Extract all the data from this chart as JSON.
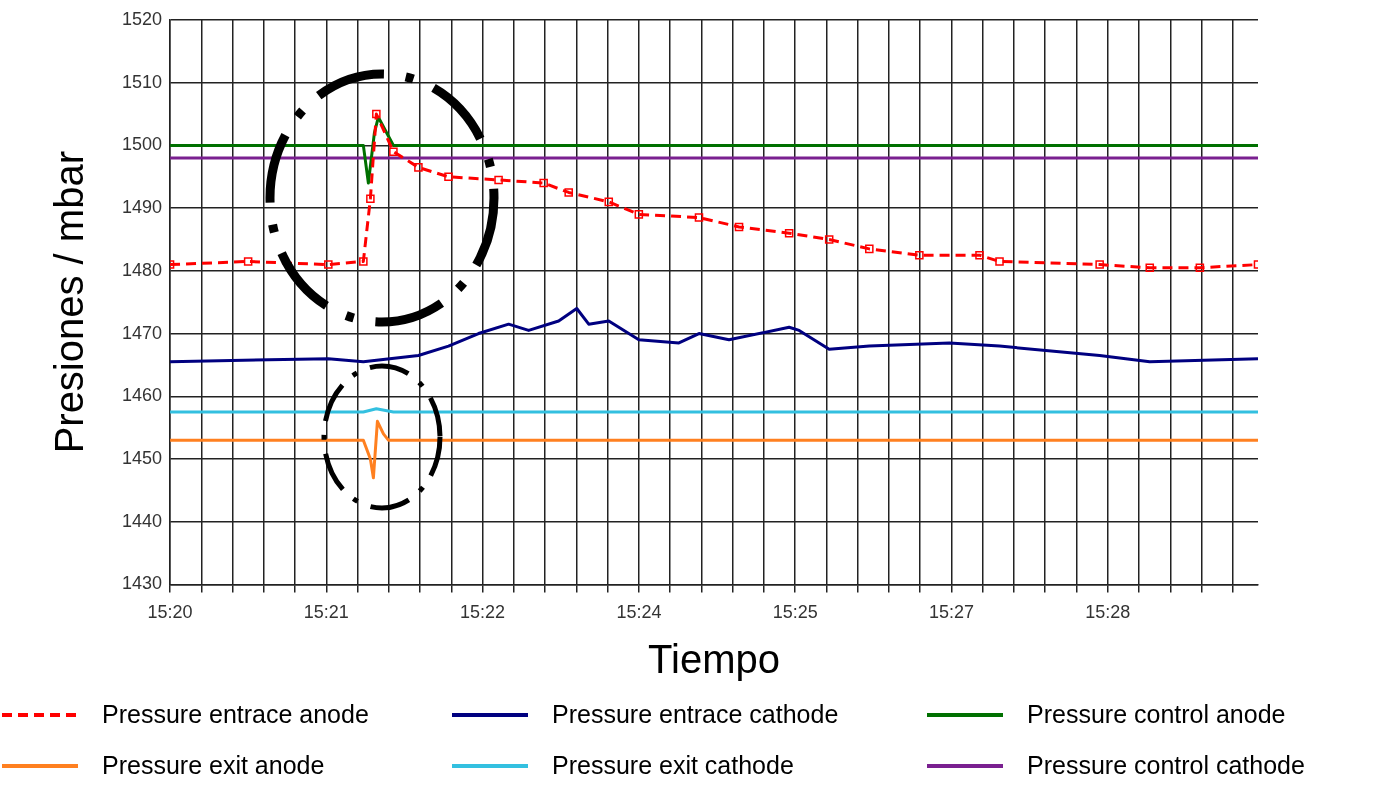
{
  "chart_data": {
    "type": "line",
    "xlabel": "Tiempo",
    "ylabel": "Presiones / mbar",
    "legend": "bottom",
    "grid": true,
    "xlim": [
      15.32667,
      15.4891
    ],
    "ylim": [
      1430,
      1520
    ],
    "yticks": [
      1430,
      1440,
      1450,
      1460,
      1470,
      1480,
      1490,
      1500,
      1510,
      1520
    ],
    "xticks": [
      {
        "value": 15.32667,
        "label": "15:20"
      },
      {
        "value": 15.33133,
        "label": null
      },
      {
        "value": 15.336,
        "label": null
      },
      {
        "value": 15.34067,
        "label": null
      },
      {
        "value": 15.34533,
        "label": null
      },
      {
        "value": 15.35,
        "label": "15:21"
      },
      {
        "value": 15.35467,
        "label": null
      },
      {
        "value": 15.35933,
        "label": null
      },
      {
        "value": 15.364,
        "label": null
      },
      {
        "value": 15.36867,
        "label": null
      },
      {
        "value": 15.37333,
        "label": "15:22"
      },
      {
        "value": 15.378,
        "label": null
      },
      {
        "value": 15.38267,
        "label": null
      },
      {
        "value": 15.38733,
        "label": null
      },
      {
        "value": 15.392,
        "label": null
      },
      {
        "value": 15.39667,
        "label": "15:24"
      },
      {
        "value": 15.40133,
        "label": null
      },
      {
        "value": 15.406,
        "label": null
      },
      {
        "value": 15.41067,
        "label": null
      },
      {
        "value": 15.41533,
        "label": null
      },
      {
        "value": 15.42,
        "label": "15:25"
      },
      {
        "value": 15.42467,
        "label": null
      },
      {
        "value": 15.42933,
        "label": null
      },
      {
        "value": 15.434,
        "label": null
      },
      {
        "value": 15.43867,
        "label": null
      },
      {
        "value": 15.44333,
        "label": "15:27"
      },
      {
        "value": 15.448,
        "label": null
      },
      {
        "value": 15.45267,
        "label": null
      },
      {
        "value": 15.45733,
        "label": null
      },
      {
        "value": 15.462,
        "label": null
      },
      {
        "value": 15.46667,
        "label": "15:28"
      },
      {
        "value": 15.47133,
        "label": null
      },
      {
        "value": 15.476,
        "label": null
      },
      {
        "value": 15.48067,
        "label": null
      },
      {
        "value": 15.48533,
        "label": null
      }
    ],
    "series": [
      {
        "name": "Pressure entrace anode",
        "color": "#ff0000",
        "line_style": "dashed",
        "marker": "square",
        "x": [
          15.32667,
          15.33833,
          15.3503,
          15.35553,
          15.35658,
          15.35747,
          15.36002,
          15.36375,
          15.36824,
          15.37572,
          15.38245,
          15.38619,
          15.39217,
          15.39666,
          15.40564,
          15.41162,
          15.4191,
          15.42508,
          15.43107,
          15.43854,
          15.44752,
          15.45051,
          15.46546,
          15.47294,
          15.48042,
          15.4891
        ],
        "values": [
          1481,
          1481.5,
          1481,
          1481.5,
          1491.5,
          1505,
          1499,
          1496.5,
          1495,
          1494.5,
          1494,
          1492.5,
          1491,
          1489,
          1488.5,
          1487,
          1486,
          1485,
          1483.5,
          1482.5,
          1482.5,
          1481.5,
          1481,
          1480.5,
          1480.5,
          1481
        ]
      },
      {
        "name": "Pressure entrace cathode",
        "color": "#000080",
        "line_style": "solid",
        "marker": "none",
        "x": [
          15.32667,
          15.3503,
          15.35553,
          15.36375,
          15.36824,
          15.37273,
          15.37722,
          15.38021,
          15.38469,
          15.38739,
          15.38918,
          15.39217,
          15.39666,
          15.40264,
          15.40564,
          15.41012,
          15.4191,
          15.42059,
          15.42508,
          15.43107,
          15.44303,
          15.45051,
          15.46546,
          15.47294,
          15.4891
        ],
        "values": [
          1465.5,
          1466,
          1465.5,
          1466.5,
          1468,
          1470,
          1471.5,
          1470.5,
          1472,
          1474,
          1471.5,
          1472,
          1469,
          1468.5,
          1470,
          1469,
          1471,
          1470.5,
          1467.5,
          1468,
          1468.5,
          1468,
          1466.5,
          1465.5,
          1466
        ]
      },
      {
        "name": "Pressure control anode",
        "color": "#007000",
        "line_style": "solid",
        "marker": "none",
        "x": [
          15.32667,
          15.35553,
          15.35628,
          15.35718,
          15.35777,
          15.36002,
          15.4891
        ],
        "values": [
          1500,
          1500,
          1494,
          1502,
          1504.5,
          1500,
          1500
        ]
      },
      {
        "name": "Pressure exit anode",
        "color": "#ff8020",
        "line_style": "solid",
        "marker": "none",
        "x": [
          15.32667,
          15.35553,
          15.35658,
          15.35703,
          15.35763,
          15.35853,
          15.35927,
          15.4891
        ],
        "values": [
          1453,
          1453,
          1450,
          1447,
          1456,
          1454,
          1453,
          1453
        ]
      },
      {
        "name": "Pressure exit cathode",
        "color": "#33c0e0",
        "line_style": "solid",
        "marker": "none",
        "x": [
          15.32667,
          15.35553,
          15.35747,
          15.36002,
          15.4891
        ],
        "values": [
          1457.5,
          1457.5,
          1458,
          1457.5,
          1457.5
        ]
      },
      {
        "name": "Pressure control cathode",
        "color": "#7a2090",
        "line_style": "solid",
        "marker": "none",
        "x": [
          15.32667,
          15.4891
        ],
        "values": [
          1498,
          1498
        ]
      }
    ]
  }
}
